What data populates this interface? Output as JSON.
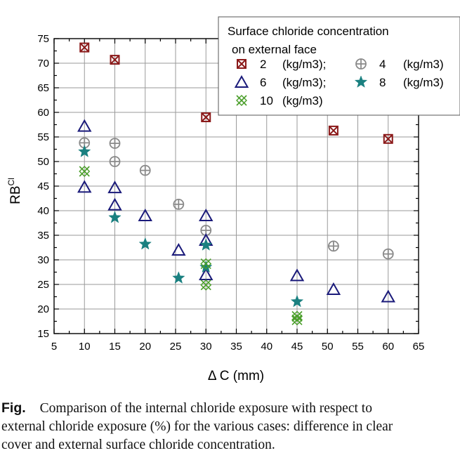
{
  "chart_data": {
    "type": "scatter",
    "title": "",
    "xlabel": "Δ C (mm)",
    "ylabel": "RB",
    "ylabel_superscript": "Cl",
    "xlim": [
      5,
      65
    ],
    "ylim": [
      15,
      75
    ],
    "x_ticks": [
      "5",
      "10",
      "15",
      "20",
      "25",
      "30",
      "35",
      "40",
      "45",
      "50",
      "55",
      "60",
      "65"
    ],
    "y_ticks": [
      "15",
      "20",
      "25",
      "30",
      "35",
      "40",
      "45",
      "50",
      "55",
      "60",
      "65",
      "70",
      "75"
    ],
    "grid": true,
    "legend_title": "Surface chloride concentration",
    "legend_subtitle": "on external face",
    "legend_placement": "top-right",
    "series": [
      {
        "name": "2",
        "unit": "(kg/m3);",
        "marker": "boxed-x",
        "color": "#8b1a1a",
        "points": [
          [
            10,
            73.2
          ],
          [
            15,
            70.7
          ],
          [
            30,
            59.0
          ],
          [
            51,
            56.3
          ],
          [
            60,
            54.6
          ]
        ]
      },
      {
        "name": "4",
        "unit": "(kg/m3)",
        "marker": "circle-plus",
        "color": "#8a8a8a",
        "points": [
          [
            10,
            53.8
          ],
          [
            15,
            53.7
          ],
          [
            15,
            50.0
          ],
          [
            20,
            48.2
          ],
          [
            25.5,
            41.3
          ],
          [
            30,
            36.0
          ],
          [
            51,
            32.8
          ],
          [
            60,
            31.2
          ]
        ]
      },
      {
        "name": "6",
        "unit": "(kg/m3);",
        "marker": "triangle",
        "color": "#1a1a7a",
        "points": [
          [
            10,
            57.2
          ],
          [
            10,
            44.8
          ],
          [
            15,
            44.7
          ],
          [
            15,
            41.2
          ],
          [
            20,
            39.0
          ],
          [
            25.5,
            32.0
          ],
          [
            30,
            39.0
          ],
          [
            30,
            34.0
          ],
          [
            30,
            27.0
          ],
          [
            45,
            26.8
          ],
          [
            51,
            24.0
          ],
          [
            60,
            22.5
          ]
        ]
      },
      {
        "name": "8",
        "unit": "(kg/m3)",
        "marker": "star",
        "color": "#1a8080",
        "points": [
          [
            10,
            52.0
          ],
          [
            15,
            38.6
          ],
          [
            20,
            33.2
          ],
          [
            25.5,
            26.3
          ],
          [
            30,
            33.0
          ],
          [
            30,
            28.5
          ],
          [
            45,
            21.5
          ]
        ]
      },
      {
        "name": "10",
        "unit": "(kg/m3)",
        "marker": "double-x",
        "color": "#4a9e2a",
        "points": [
          [
            10,
            48.0
          ],
          [
            30,
            29.2
          ],
          [
            30,
            24.9
          ],
          [
            45,
            18.5
          ],
          [
            45,
            17.8
          ]
        ]
      }
    ]
  },
  "caption": {
    "label": "Fig.",
    "line1": "Comparison of the internal chloride exposure with respect to",
    "line2": "external chloride exposure (%) for the various cases: difference in clear",
    "line3": "cover and external surface chloride concentration."
  }
}
